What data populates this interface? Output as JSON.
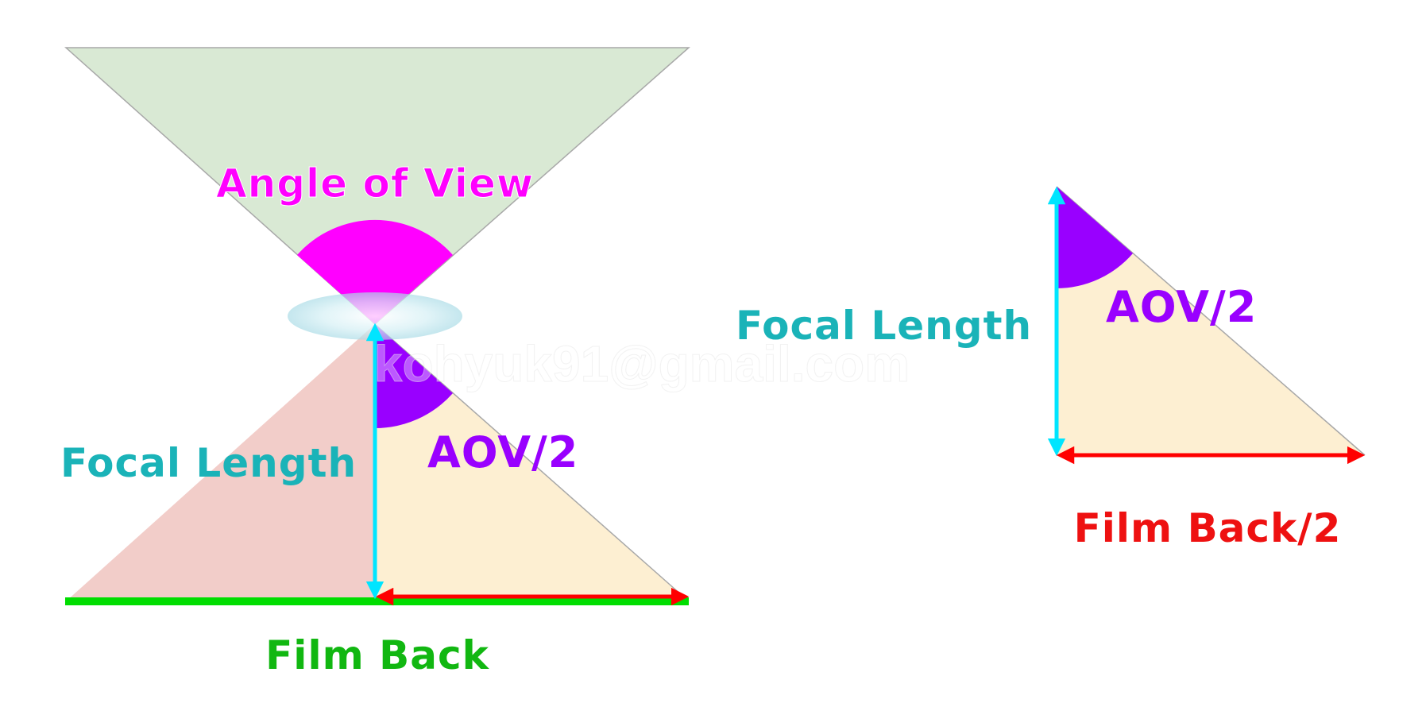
{
  "labels": {
    "angle_of_view": "Angle of View",
    "focal_length_left": "Focal Length",
    "aov_half_left": "AOV/2",
    "film_back": "Film Back",
    "focal_length_right": "Focal Length",
    "aov_half_right": "AOV/2",
    "film_back_half": "Film Back/2"
  },
  "watermark": "kohyuk91@gmail.com",
  "colors": {
    "scene_cone": "#d9e9d4",
    "film_cone": "#f2cdc9",
    "half_triangle": "#fdefd2",
    "angle_of_view": "#ff00ff",
    "aov_half": "#9900ff",
    "focal_length": "#00e5ff",
    "focal_length_text": "#1ab3b8",
    "film_back": "#00dd00",
    "film_back_half": "#ff0000",
    "lens": "#bfe6ee"
  }
}
